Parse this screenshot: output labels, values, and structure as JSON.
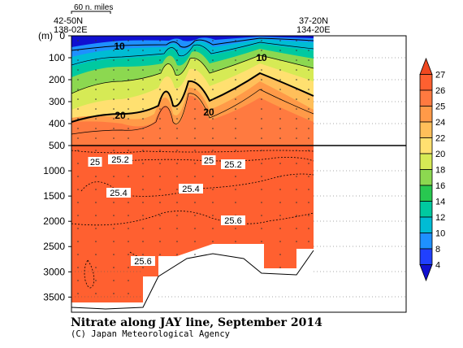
{
  "chart_data": {
    "type": "heatmap",
    "title": "Nitrate along JAY line, September 2014",
    "credit": "(C) Japan Meteorological Agency",
    "ylabel": "(m)",
    "scale_bar_label": "60 n. miles",
    "station_labels": {
      "left_lat": "42-50N",
      "left_lon": "138-02E",
      "right_lat": "37-20N",
      "right_lon": "134-20E"
    },
    "upper_panel": {
      "ylim": [
        0,
        500
      ],
      "y_ticks": [
        "0",
        "100",
        "200",
        "300",
        "400",
        "500"
      ]
    },
    "lower_panel": {
      "ylim": [
        500,
        3800
      ],
      "y_ticks": [
        "1000",
        "1500",
        "2000",
        "2500",
        "3000",
        "3500"
      ]
    },
    "colorbar": {
      "levels": [
        "4",
        "8",
        "10",
        "12",
        "14",
        "16",
        "18",
        "20",
        "22",
        "24",
        "25",
        "26",
        "27"
      ],
      "colors": [
        "#1010d0",
        "#2040ff",
        "#1e90ff",
        "#00bcd4",
        "#00c9a0",
        "#28c850",
        "#8cd850",
        "#d6ea55",
        "#ffe070",
        "#ffbf5a",
        "#ff9a48",
        "#ff7a40",
        "#ff6030",
        "#f04820"
      ]
    },
    "contour_labels": [
      {
        "text": "10",
        "depth": 30
      },
      {
        "text": "10",
        "depth": 60
      },
      {
        "text": "20",
        "depth": 360
      },
      {
        "text": "20",
        "depth": 345
      },
      {
        "text": "25",
        "depth": 800
      },
      {
        "text": "25.2",
        "depth": 800
      },
      {
        "text": "25",
        "depth": 760
      },
      {
        "text": "25.2",
        "depth": 810
      },
      {
        "text": "25.4",
        "depth": 1450
      },
      {
        "text": "25.4",
        "depth": 1380
      },
      {
        "text": "25.6",
        "depth": 1970
      },
      {
        "text": "25.6",
        "depth": 2750
      }
    ]
  }
}
